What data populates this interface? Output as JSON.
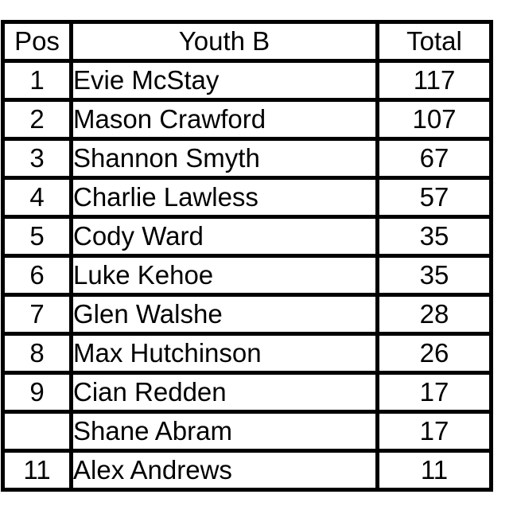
{
  "chart_data": {
    "type": "table",
    "title": "Youth B",
    "columns": [
      "Pos",
      "Youth B",
      "Total"
    ],
    "rows": [
      [
        "1",
        "Evie McStay",
        "117"
      ],
      [
        "2",
        "Mason Crawford",
        "107"
      ],
      [
        "3",
        "Shannon Smyth",
        "67"
      ],
      [
        "4",
        "Charlie Lawless",
        "57"
      ],
      [
        "5",
        "Cody Ward",
        "35"
      ],
      [
        "6",
        "Luke Kehoe",
        "35"
      ],
      [
        "7",
        "Glen Walshe",
        "28"
      ],
      [
        "8",
        "Max Hutchinson",
        "26"
      ],
      [
        "9",
        "Cian Redden",
        "17"
      ],
      [
        "",
        "Shane Abram",
        "17"
      ],
      [
        "11",
        "Alex Andrews",
        "11"
      ]
    ],
    "layout": {
      "grid": "thick-black-borders",
      "header_fill": "#21a74f",
      "header_text_color": "#ffffff",
      "total_column_bold": true
    }
  },
  "colors": {
    "header_green": "#21a74f",
    "border_black": "#000000",
    "background_white": "#ffffff",
    "text_black": "#000000",
    "header_text_white": "#ffffff"
  }
}
